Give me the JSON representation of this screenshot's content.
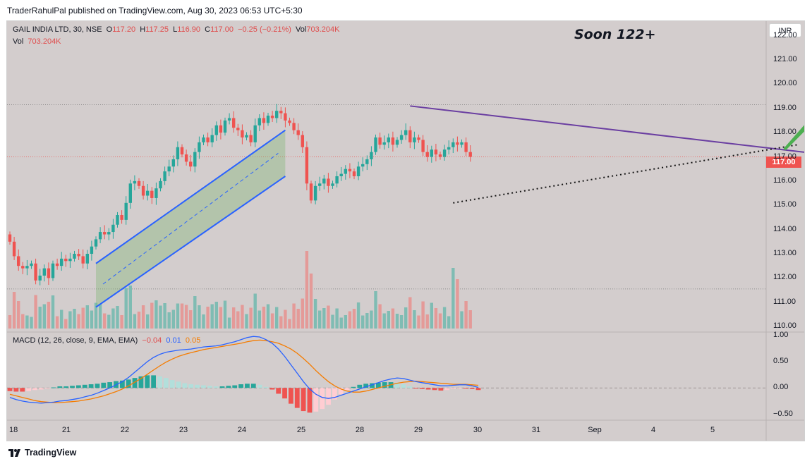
{
  "header": {
    "publisher_line": "TraderRahulPal published on TradingView.com, Aug 30, 2023 06:53 UTC+5:30"
  },
  "footer": {
    "brand": "TradingView"
  },
  "symbol_legend": {
    "symbol": "GAIL INDIA LTD, 30, NSE",
    "o_label": "O",
    "o_value": "117.20",
    "h_label": "H",
    "h_value": "117.25",
    "l_label": "L",
    "l_value": "116.90",
    "c_label": "C",
    "c_value": "117.00",
    "change": "−0.25 (−0.21%)",
    "vol_label": "Vol",
    "vol_value": "703.204K"
  },
  "volume_legend": {
    "label": "Vol",
    "value": "703.204K"
  },
  "macd_legend": {
    "label": "MACD (12, 26, close, 9, EMA, EMA)",
    "hist": "−0.04",
    "macd": "0.01",
    "signal": "0.05"
  },
  "currency_button": "INR",
  "annotation": "Soon 122+",
  "colors": {
    "up": "#5aa9a0",
    "down": "#ef5350",
    "channel": "#2962ff",
    "trendline": "#6a3ea1",
    "arrow": "#4caf50",
    "macd_line": "#2962ff",
    "signal_line": "#f57c00",
    "background": "#d3cdcd"
  },
  "chart_data": [
    {
      "type": "candlestick",
      "symbol": "GAIL INDIA LTD",
      "interval": "30",
      "exchange": "NSE",
      "currency": "INR",
      "ylim": [
        109.8,
        122.6
      ],
      "price_ticks": [
        "122.00",
        "121.00",
        "120.00",
        "119.00",
        "118.00",
        "117.00",
        "116.00",
        "115.00",
        "114.00",
        "113.00",
        "112.00",
        "111.00",
        "110.00"
      ],
      "last_price": "117.00",
      "x_tick_labels": [
        "18",
        "21",
        "22",
        "23",
        "24",
        "25",
        "28",
        "29",
        "30",
        "31",
        "Sep",
        "4",
        "5"
      ],
      "days": [
        "Aug 18",
        "Aug 21",
        "Aug 22",
        "Aug 23",
        "Aug 24",
        "Aug 25",
        "Aug 28",
        "Aug 29",
        "Aug 30"
      ],
      "close": [
        113.5,
        112.9,
        112.5,
        112.4,
        112.5,
        112.6,
        111.9,
        112.1,
        112.4,
        112.0,
        112.6,
        112.5,
        112.8,
        112.7,
        112.8,
        113.0,
        112.9,
        112.6,
        113.0,
        113.3,
        113.6,
        113.9,
        113.8,
        113.9,
        114.2,
        114.6,
        114.4,
        115.1,
        115.9,
        116.0,
        115.8,
        115.4,
        115.6,
        115.3,
        115.7,
        116.0,
        116.4,
        116.6,
        116.9,
        117.4,
        117.1,
        116.8,
        116.6,
        117.2,
        117.6,
        117.8,
        117.6,
        117.9,
        118.3,
        118.0,
        118.5,
        118.6,
        118.2,
        118.1,
        117.8,
        117.9,
        117.6,
        118.3,
        118.6,
        118.4,
        118.7,
        118.6,
        118.9,
        118.8,
        118.5,
        118.4,
        118.1,
        117.9,
        117.4,
        115.9,
        115.2,
        115.8,
        115.9,
        116.1,
        115.8,
        115.9,
        116.2,
        116.3,
        116.5,
        116.4,
        116.2,
        116.6,
        116.7,
        116.9,
        117.2,
        117.8,
        117.5,
        117.6,
        117.8,
        117.5,
        117.7,
        117.9,
        118.1,
        117.6,
        117.8,
        117.7,
        117.2,
        117.0,
        117.3,
        117.1,
        117.0,
        117.3,
        117.4,
        117.6,
        117.5,
        117.6,
        117.2,
        117.0
      ],
      "open_high_low_note": "Open, high, low are drawn per bar from close of previous bar with visible wick ranges.",
      "volume_ylim_note": "Volume histogram overlaid at bottom of price pane; last bar volume 703.204K.",
      "drawings": {
        "rising_channel": {
          "upper": [
            [
              20,
              112.6
            ],
            [
              64,
              118.1
            ]
          ],
          "lower": [
            [
              20,
              110.8
            ],
            [
              64,
              116.2
            ]
          ]
        },
        "descending_trendline": [
          [
            93,
            119.1
          ],
          [
            189,
            117.1
          ]
        ],
        "rising_dotted_support": [
          [
            103,
            115.1
          ],
          [
            183,
            117.5
          ]
        ],
        "target_arrow": {
          "from": [
            180,
            117.3
          ],
          "to": [
            202,
            121.5
          ],
          "label": "Soon 122+"
        }
      }
    },
    {
      "type": "line",
      "title": "MACD (12, 26, close, 9, EMA, EMA)",
      "ylim": [
        -0.6,
        1.05
      ],
      "y_ticks": [
        "1.00",
        "0.50",
        "0.00",
        "−0.50"
      ],
      "series": [
        {
          "name": "MACD",
          "values": [
            -0.18,
            -0.22,
            -0.25,
            -0.27,
            -0.28,
            -0.29,
            -0.28,
            -0.27,
            -0.25,
            -0.24,
            -0.22,
            -0.2,
            -0.17,
            -0.14,
            -0.1,
            -0.05,
            0.0,
            0.06,
            0.12,
            0.2,
            0.3,
            0.4,
            0.5,
            0.58,
            0.64,
            0.68,
            0.7,
            0.72,
            0.73,
            0.74,
            0.76,
            0.78,
            0.79,
            0.8,
            0.82,
            0.85,
            0.88,
            0.92,
            0.96,
            0.98,
            0.97,
            0.92,
            0.85,
            0.74,
            0.6,
            0.44,
            0.28,
            0.12,
            -0.02,
            -0.12,
            -0.18,
            -0.2,
            -0.18,
            -0.14,
            -0.1,
            -0.06,
            -0.02,
            0.02,
            0.06,
            0.1,
            0.14,
            0.17,
            0.19,
            0.18,
            0.15,
            0.12,
            0.1,
            0.08,
            0.06,
            0.04,
            0.04,
            0.05,
            0.06,
            0.06,
            0.04,
            0.01
          ]
        },
        {
          "name": "Signal",
          "values": [
            -0.12,
            -0.15,
            -0.18,
            -0.21,
            -0.24,
            -0.26,
            -0.27,
            -0.28,
            -0.28,
            -0.27,
            -0.26,
            -0.25,
            -0.23,
            -0.21,
            -0.18,
            -0.15,
            -0.11,
            -0.07,
            -0.02,
            0.04,
            0.11,
            0.18,
            0.26,
            0.34,
            0.42,
            0.49,
            0.55,
            0.6,
            0.64,
            0.67,
            0.7,
            0.73,
            0.75,
            0.77,
            0.79,
            0.81,
            0.83,
            0.85,
            0.88,
            0.9,
            0.91,
            0.9,
            0.88,
            0.85,
            0.8,
            0.74,
            0.66,
            0.56,
            0.45,
            0.33,
            0.22,
            0.12,
            0.04,
            -0.02,
            -0.06,
            -0.08,
            -0.08,
            -0.06,
            -0.03,
            0.0,
            0.03,
            0.06,
            0.09,
            0.11,
            0.12,
            0.13,
            0.12,
            0.11,
            0.1,
            0.09,
            0.08,
            0.07,
            0.07,
            0.07,
            0.06,
            0.05
          ]
        },
        {
          "name": "Histogram",
          "values": [
            -0.06,
            -0.07,
            -0.07,
            -0.06,
            -0.04,
            -0.03,
            -0.01,
            0.01,
            0.03,
            0.03,
            0.04,
            0.05,
            0.06,
            0.07,
            0.08,
            0.1,
            0.11,
            0.13,
            0.14,
            0.16,
            0.19,
            0.22,
            0.24,
            0.24,
            0.22,
            0.19,
            0.15,
            0.12,
            0.09,
            0.07,
            0.06,
            0.05,
            0.04,
            0.03,
            0.03,
            0.04,
            0.05,
            0.07,
            0.08,
            0.08,
            0.06,
            0.02,
            -0.03,
            -0.11,
            -0.2,
            -0.3,
            -0.38,
            -0.44,
            -0.47,
            -0.45,
            -0.4,
            -0.32,
            -0.22,
            -0.12,
            -0.04,
            0.02,
            0.06,
            0.08,
            0.09,
            0.1,
            0.11,
            0.11,
            0.1,
            0.07,
            0.03,
            -0.01,
            -0.02,
            -0.03,
            -0.04,
            -0.05,
            -0.04,
            -0.02,
            -0.01,
            -0.01,
            -0.02,
            -0.04
          ]
        }
      ]
    }
  ]
}
